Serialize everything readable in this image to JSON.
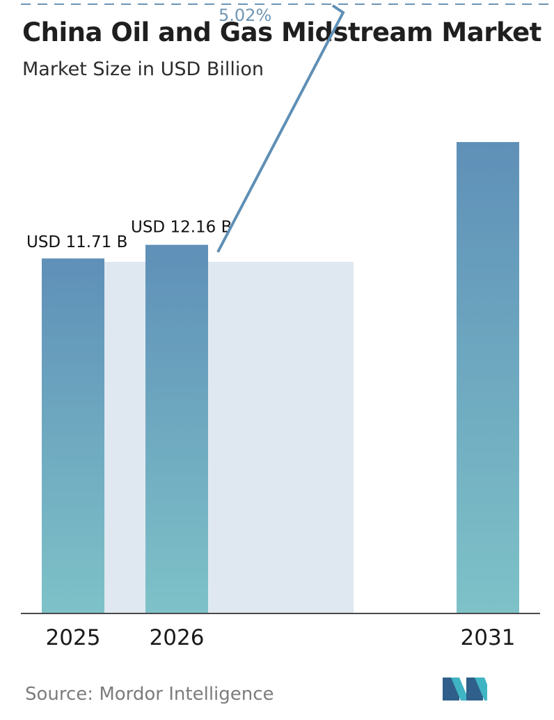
{
  "chart_data": {
    "type": "bar",
    "title": "China Oil and Gas Midstream Market",
    "subtitle": "Market Size in USD Billion",
    "categories": [
      "2025",
      "2026",
      "2031"
    ],
    "values": [
      11.71,
      12.16,
      15.55
    ],
    "data_labels": [
      "USD 11.71 B",
      "USD 12.16 B",
      ""
    ],
    "cagr_label": "5.02%",
    "ylim": [
      0,
      15.55
    ],
    "grid": false,
    "legend": "none",
    "source": "Source:  Mordor Intelligence"
  },
  "colors": {
    "bar_top": "#5f90b8",
    "bar_bottom": "#7ec2c8",
    "highlight_band": "#dfe8f0",
    "arrow": "#5f8fb5",
    "dash_line": "#6b94b4",
    "axis": "#4a4a4a",
    "logo_left": "#2f5f8a",
    "logo_right": "#3fb4c3"
  },
  "icons": {
    "logo": "mordor-intelligence-logo-icon"
  }
}
